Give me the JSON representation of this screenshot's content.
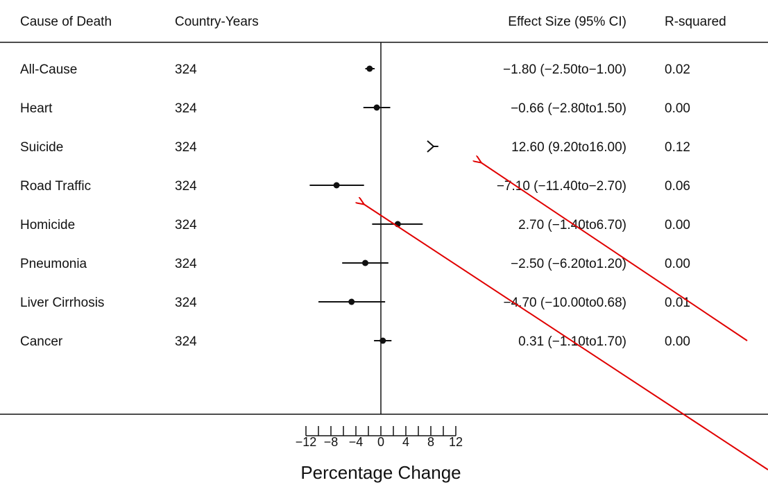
{
  "chart_data": {
    "type": "forest",
    "columns": {
      "cause": "Cause of Death",
      "n": "Country-Years",
      "effect": "Effect Size (95% CI)",
      "r2": "R-squared"
    },
    "rows": [
      {
        "cause": "All-Cause",
        "n": "324",
        "est": -1.8,
        "lo": -2.5,
        "hi": -1.0,
        "ci_text": "−1.80 (−2.50to−1.00)",
        "r2": "0.02"
      },
      {
        "cause": "Heart",
        "n": "324",
        "est": -0.66,
        "lo": -2.8,
        "hi": 1.5,
        "ci_text": "−0.66 (−2.80to1.50)",
        "r2": "0.00"
      },
      {
        "cause": "Suicide",
        "n": "324",
        "est": 12.6,
        "lo": 9.2,
        "hi": 16.0,
        "ci_text": "12.60 (9.20to16.00)",
        "r2": "0.12"
      },
      {
        "cause": "Road Traffic",
        "n": "324",
        "est": -7.1,
        "lo": -11.4,
        "hi": -2.7,
        "ci_text": "−7.10 (−11.40to−2.70)",
        "r2": "0.06"
      },
      {
        "cause": "Homicide",
        "n": "324",
        "est": 2.7,
        "lo": -1.4,
        "hi": 6.7,
        "ci_text": "2.70 (−1.40to6.70)",
        "r2": "0.00"
      },
      {
        "cause": "Pneumonia",
        "n": "324",
        "est": -2.5,
        "lo": -6.2,
        "hi": 1.2,
        "ci_text": "−2.50 (−6.20to1.20)",
        "r2": "0.00"
      },
      {
        "cause": "Liver Cirrhosis",
        "n": "324",
        "est": -4.7,
        "lo": -10.0,
        "hi": 0.68,
        "ci_text": "−4.70 (−10.00to0.68)",
        "r2": "0.01"
      },
      {
        "cause": "Cancer",
        "n": "324",
        "est": 0.31,
        "lo": -1.1,
        "hi": 1.7,
        "ci_text": "0.31 (−1.10to1.70)",
        "r2": "0.00"
      }
    ],
    "xticks": [
      -12,
      -8,
      -4,
      0,
      4,
      8,
      12
    ],
    "xtick_labels": [
      "−12",
      "−8",
      "−4",
      "0",
      "4",
      "8",
      "12"
    ],
    "xlabel": "Percentage Change",
    "xlim": [
      -12,
      12
    ],
    "grid": false,
    "annotations": [
      {
        "type": "arrow",
        "color": "#e00000",
        "target_row": "Suicide"
      },
      {
        "type": "arrow",
        "color": "#e00000",
        "target_row": "Road Traffic"
      }
    ]
  },
  "colors": {
    "marks": "#111111",
    "arrow": "#e00000"
  }
}
